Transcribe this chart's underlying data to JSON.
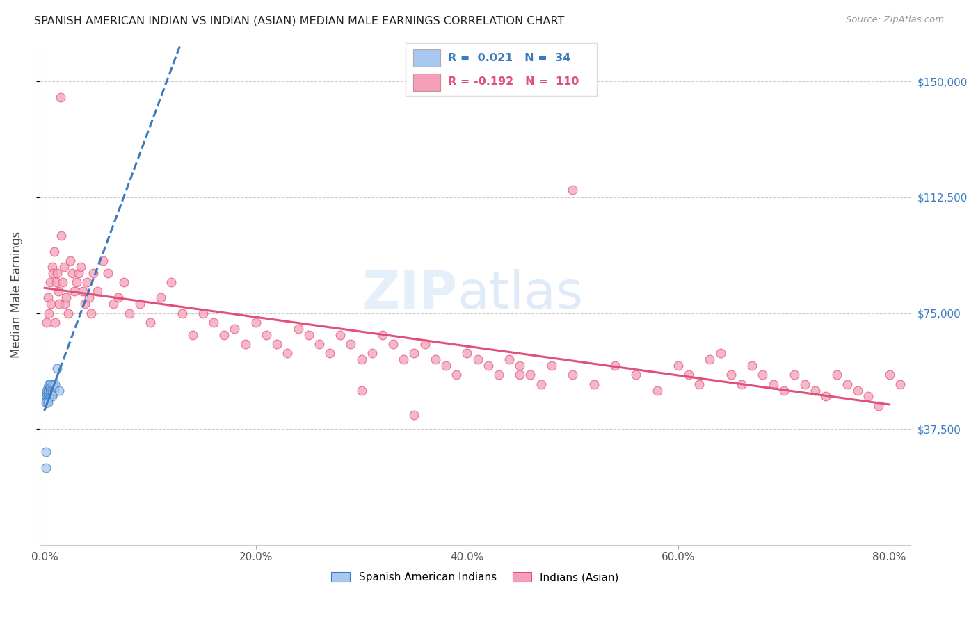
{
  "title": "SPANISH AMERICAN INDIAN VS INDIAN (ASIAN) MEDIAN MALE EARNINGS CORRELATION CHART",
  "source": "Source: ZipAtlas.com",
  "xlabel_ticks": [
    "0.0%",
    "20.0%",
    "40.0%",
    "60.0%",
    "80.0%"
  ],
  "xlabel_tick_vals": [
    0.0,
    0.2,
    0.4,
    0.6,
    0.8
  ],
  "ylabel": "Median Male Earnings",
  "ylabel_ticks": [
    "$37,500",
    "$75,000",
    "$112,500",
    "$150,000"
  ],
  "ylabel_tick_vals": [
    37500,
    75000,
    112500,
    150000
  ],
  "ylim": [
    0,
    162000
  ],
  "xlim": [
    -0.005,
    0.82
  ],
  "watermark": "ZIPatlas",
  "blue_label": "Spanish American Indians",
  "pink_label": "Indians (Asian)",
  "blue_color": "#a8c8f0",
  "pink_color": "#f4a0b8",
  "blue_line_color": "#3a7bbf",
  "pink_line_color": "#e0507a",
  "right_tick_color": "#3a7bbf",
  "blue_x": [
    0.001,
    0.001,
    0.002,
    0.002,
    0.002,
    0.002,
    0.002,
    0.003,
    0.003,
    0.003,
    0.003,
    0.004,
    0.004,
    0.004,
    0.004,
    0.005,
    0.005,
    0.005,
    0.005,
    0.006,
    0.006,
    0.006,
    0.007,
    0.007,
    0.007,
    0.008,
    0.008,
    0.009,
    0.009,
    0.01,
    0.012,
    0.014,
    0.001,
    0.003
  ],
  "blue_y": [
    25000,
    30000,
    46000,
    47000,
    48000,
    49000,
    50000,
    47000,
    49000,
    50000,
    51000,
    48000,
    49000,
    50000,
    52000,
    48000,
    50000,
    51000,
    52000,
    49000,
    50000,
    51000,
    48000,
    50000,
    51000,
    49000,
    52000,
    50000,
    51000,
    52000,
    57000,
    50000,
    46000,
    46000
  ],
  "pink_x": [
    0.002,
    0.003,
    0.004,
    0.005,
    0.006,
    0.007,
    0.008,
    0.009,
    0.01,
    0.011,
    0.012,
    0.013,
    0.014,
    0.015,
    0.016,
    0.017,
    0.018,
    0.019,
    0.02,
    0.022,
    0.024,
    0.026,
    0.028,
    0.03,
    0.032,
    0.034,
    0.036,
    0.038,
    0.04,
    0.042,
    0.044,
    0.046,
    0.05,
    0.055,
    0.06,
    0.065,
    0.07,
    0.075,
    0.08,
    0.09,
    0.1,
    0.11,
    0.12,
    0.13,
    0.14,
    0.15,
    0.16,
    0.17,
    0.18,
    0.19,
    0.2,
    0.21,
    0.22,
    0.23,
    0.24,
    0.25,
    0.26,
    0.27,
    0.28,
    0.29,
    0.3,
    0.31,
    0.32,
    0.33,
    0.34,
    0.35,
    0.36,
    0.37,
    0.38,
    0.39,
    0.4,
    0.41,
    0.42,
    0.43,
    0.44,
    0.45,
    0.46,
    0.47,
    0.48,
    0.5,
    0.52,
    0.54,
    0.56,
    0.58,
    0.6,
    0.61,
    0.62,
    0.63,
    0.64,
    0.65,
    0.66,
    0.67,
    0.68,
    0.69,
    0.7,
    0.71,
    0.72,
    0.73,
    0.74,
    0.75,
    0.76,
    0.77,
    0.78,
    0.79,
    0.8,
    0.81,
    0.3,
    0.35,
    0.45,
    0.5
  ],
  "pink_y": [
    72000,
    80000,
    75000,
    85000,
    78000,
    90000,
    88000,
    95000,
    72000,
    85000,
    88000,
    82000,
    78000,
    145000,
    100000,
    85000,
    90000,
    78000,
    80000,
    75000,
    92000,
    88000,
    82000,
    85000,
    88000,
    90000,
    82000,
    78000,
    85000,
    80000,
    75000,
    88000,
    82000,
    92000,
    88000,
    78000,
    80000,
    85000,
    75000,
    78000,
    72000,
    80000,
    85000,
    75000,
    68000,
    75000,
    72000,
    68000,
    70000,
    65000,
    72000,
    68000,
    65000,
    62000,
    70000,
    68000,
    65000,
    62000,
    68000,
    65000,
    60000,
    62000,
    68000,
    65000,
    60000,
    62000,
    65000,
    60000,
    58000,
    55000,
    62000,
    60000,
    58000,
    55000,
    60000,
    58000,
    55000,
    52000,
    58000,
    55000,
    52000,
    58000,
    55000,
    50000,
    58000,
    55000,
    52000,
    60000,
    62000,
    55000,
    52000,
    58000,
    55000,
    52000,
    50000,
    55000,
    52000,
    50000,
    48000,
    55000,
    52000,
    50000,
    48000,
    45000,
    55000,
    52000,
    50000,
    42000,
    55000,
    115000
  ]
}
